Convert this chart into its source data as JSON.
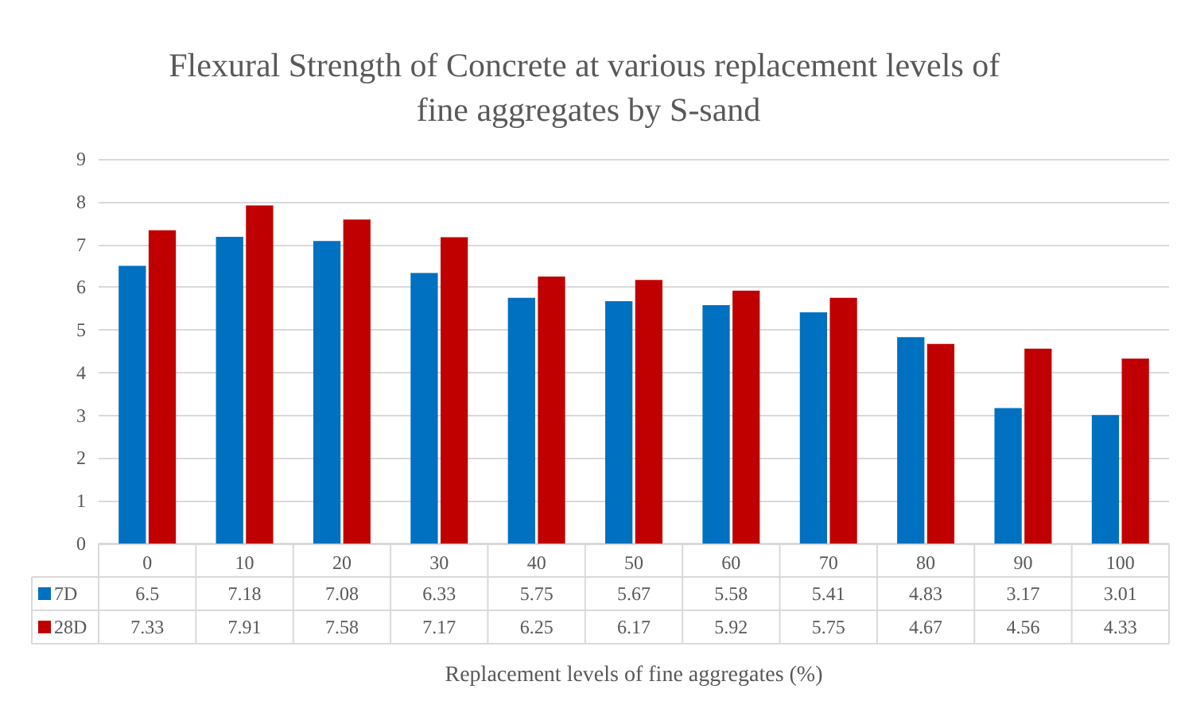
{
  "chart_data": {
    "type": "bar",
    "title": "Flexural Strength of Concrete at various replacement levels of fine aggregates by S-sand",
    "xlabel": "Replacement levels of fine aggregates (%)",
    "categories": [
      "0",
      "10",
      "20",
      "30",
      "40",
      "50",
      "60",
      "70",
      "80",
      "90",
      "100"
    ],
    "series": [
      {
        "name": "7D",
        "color": "#0070c0",
        "values": [
          6.5,
          7.18,
          7.08,
          6.33,
          5.75,
          5.67,
          5.58,
          5.41,
          4.83,
          3.17,
          3.01
        ]
      },
      {
        "name": "28D",
        "color": "#c00000",
        "values": [
          7.33,
          7.91,
          7.58,
          7.17,
          6.25,
          6.17,
          5.92,
          5.75,
          4.67,
          4.56,
          4.33
        ]
      }
    ],
    "ylim": [
      0,
      9
    ],
    "yticks": [
      0,
      1,
      2,
      3,
      4,
      5,
      6,
      7,
      8,
      9
    ],
    "grid": "y",
    "legend": "bottom left",
    "data_labels": true
  }
}
